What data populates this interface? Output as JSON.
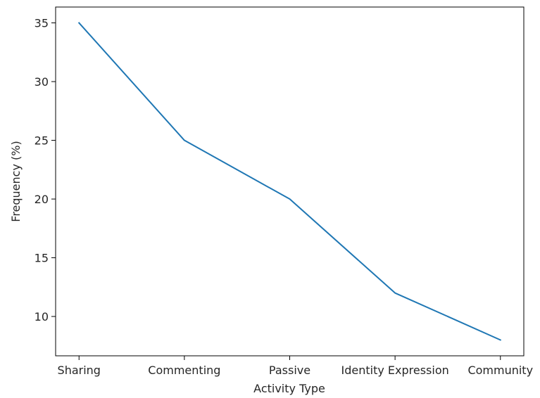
{
  "chart_data": {
    "type": "line",
    "title": "",
    "xlabel": "Activity Type",
    "ylabel": "Frequency (%)",
    "categories": [
      "Sharing",
      "Commenting",
      "Passive",
      "Identity Expression",
      "Community"
    ],
    "series": [
      {
        "values": [
          35,
          25,
          20,
          12,
          8
        ],
        "color": "#1f77b4"
      }
    ],
    "yticks": [
      10,
      15,
      20,
      25,
      30,
      35
    ],
    "ylim": [
      6.65,
      36.35
    ],
    "grid": false,
    "legend": "none"
  }
}
